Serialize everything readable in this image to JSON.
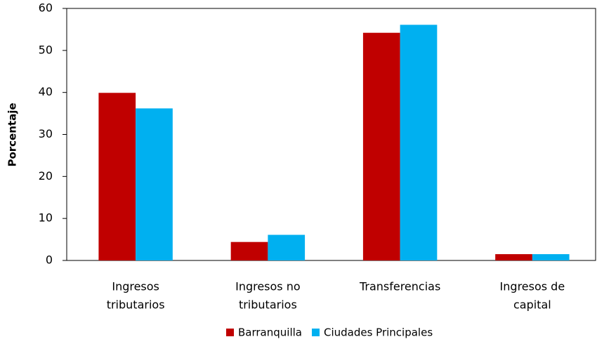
{
  "chart_data": {
    "type": "bar",
    "y_label": "Porcentaje",
    "categories": [
      [
        "Ingresos",
        "tributarios"
      ],
      [
        "Ingresos no",
        "tributarios"
      ],
      [
        "Transferencias"
      ],
      [
        "Ingresos de",
        "capital"
      ]
    ],
    "series": [
      {
        "name": "Barranquilla",
        "color": "#c00000",
        "values": [
          39.9,
          4.4,
          54.2,
          1.5
        ]
      },
      {
        "name": "Ciudades Principales",
        "color": "#00b0f0",
        "values": [
          36.2,
          6.1,
          56.1,
          1.5
        ]
      }
    ],
    "ylim": [
      0,
      60
    ],
    "yticks": [
      0,
      10,
      20,
      30,
      40,
      50,
      60
    ]
  }
}
